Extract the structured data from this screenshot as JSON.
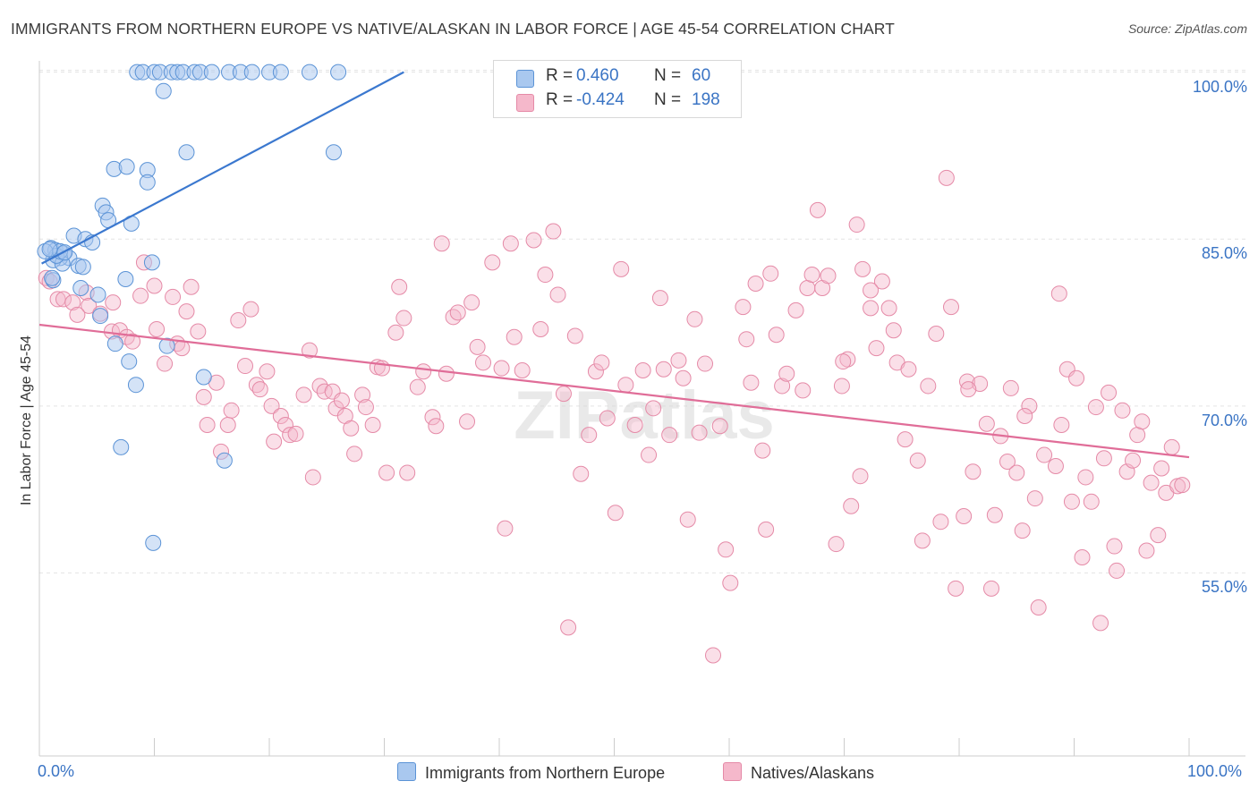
{
  "title": "IMMIGRANTS FROM NORTHERN EUROPE VS NATIVE/ALASKAN IN LABOR FORCE | AGE 45-54 CORRELATION CHART",
  "source": "Source: ZipAtlas.com",
  "watermark": "ZIPatlas",
  "colors": {
    "blue_fill": "#a9c8ef",
    "blue_stroke": "#5b93d6",
    "blue_line": "#3b78cf",
    "pink_fill": "#f5b8cb",
    "pink_stroke": "#e58aa7",
    "pink_line": "#e06d98",
    "axis_label": "#3a74c4",
    "grid": "#e3e3e3"
  },
  "legend": {
    "rows": [
      {
        "r_label": "R =",
        "r_value": "0.460",
        "n_label": "N =",
        "n_value": "60",
        "color": "#a9c8ef"
      },
      {
        "r_label": "R =",
        "r_value": "-0.424",
        "n_label": "N =",
        "n_value": "198",
        "color": "#f5b8cb"
      }
    ]
  },
  "bottom_legend": {
    "series1": "Immigrants from Northern Europe",
    "series2": "Natives/Alaskans"
  },
  "chart_data": {
    "type": "scatter",
    "title": "IMMIGRANTS FROM NORTHERN EUROPE VS NATIVE/ALASKAN IN LABOR FORCE | AGE 45-54 CORRELATION CHART",
    "xlabel": "",
    "ylabel": "In Labor Force | Age 45-54",
    "xlim": [
      0,
      100
    ],
    "ylim": [
      40,
      101.5
    ],
    "x_tick_labels": [
      "0.0%",
      "100.0%"
    ],
    "y_ticks": [
      55,
      70,
      85,
      100
    ],
    "y_tick_labels": [
      "55.0%",
      "70.0%",
      "85.0%",
      "100.0%"
    ],
    "grid": true,
    "legend_placement": "top-center",
    "series": [
      {
        "name": "Immigrants from Northern Europe",
        "R": 0.46,
        "N": 60,
        "trend": {
          "x": [
            0.2,
            31.7
          ],
          "y": [
            82.8,
            100.0
          ]
        },
        "points": [
          [
            8.5,
            100
          ],
          [
            9.0,
            100
          ],
          [
            10.0,
            100
          ],
          [
            10.5,
            100
          ],
          [
            11.5,
            100
          ],
          [
            12.0,
            100
          ],
          [
            12.5,
            100
          ],
          [
            13.5,
            100
          ],
          [
            14.0,
            100
          ],
          [
            15.0,
            100
          ],
          [
            16.5,
            100
          ],
          [
            17.5,
            100
          ],
          [
            18.5,
            100
          ],
          [
            20.0,
            100
          ],
          [
            21.0,
            100
          ],
          [
            23.5,
            100
          ],
          [
            26.0,
            100
          ],
          [
            10.8,
            98.3
          ],
          [
            25.6,
            92.8
          ],
          [
            12.8,
            92.8
          ],
          [
            6.5,
            91.3
          ],
          [
            7.6,
            91.5
          ],
          [
            9.4,
            91.2
          ],
          [
            9.4,
            90.1
          ],
          [
            5.5,
            88.0
          ],
          [
            5.8,
            87.4
          ],
          [
            6.0,
            86.7
          ],
          [
            8.0,
            86.4
          ],
          [
            3.0,
            85.3
          ],
          [
            4.0,
            85.0
          ],
          [
            4.6,
            84.7
          ],
          [
            1.0,
            84.2
          ],
          [
            1.4,
            84.0
          ],
          [
            2.1,
            83.7
          ],
          [
            2.6,
            83.3
          ],
          [
            1.8,
            83.3
          ],
          [
            1.2,
            83.1
          ],
          [
            2.0,
            82.8
          ],
          [
            3.4,
            82.6
          ],
          [
            3.8,
            82.5
          ],
          [
            9.8,
            82.9
          ],
          [
            7.5,
            81.4
          ],
          [
            1.2,
            81.3
          ],
          [
            3.6,
            80.6
          ],
          [
            5.1,
            80.0
          ],
          [
            5.3,
            78.1
          ],
          [
            6.6,
            75.6
          ],
          [
            11.1,
            75.4
          ],
          [
            7.8,
            74.0
          ],
          [
            14.3,
            72.6
          ],
          [
            8.4,
            71.9
          ],
          [
            7.1,
            66.3
          ],
          [
            16.1,
            65.1
          ],
          [
            9.9,
            57.7
          ],
          [
            1.5,
            83.5
          ],
          [
            1.8,
            83.9
          ],
          [
            0.5,
            83.9
          ],
          [
            2.2,
            83.8
          ],
          [
            0.9,
            84.1
          ],
          [
            1.1,
            81.5
          ]
        ]
      },
      {
        "name": "Natives/Alaskans",
        "R": -0.424,
        "N": 198,
        "trend": {
          "x": [
            0,
            100
          ],
          "y": [
            77.3,
            65.4
          ]
        },
        "points": [
          [
            0.6,
            81.5
          ],
          [
            0.9,
            81.2
          ],
          [
            1.6,
            79.6
          ],
          [
            2.1,
            79.6
          ],
          [
            2.9,
            79.3
          ],
          [
            4.1,
            80.2
          ],
          [
            4.3,
            79.0
          ],
          [
            3.3,
            78.2
          ],
          [
            5.3,
            78.3
          ],
          [
            6.3,
            76.7
          ],
          [
            7.0,
            76.8
          ],
          [
            6.4,
            79.3
          ],
          [
            7.6,
            76.2
          ],
          [
            8.1,
            75.8
          ],
          [
            8.8,
            79.9
          ],
          [
            9.1,
            82.9
          ],
          [
            10.0,
            80.8
          ],
          [
            10.2,
            76.9
          ],
          [
            10.9,
            73.8
          ],
          [
            11.6,
            79.8
          ],
          [
            12.0,
            75.6
          ],
          [
            12.4,
            75.2
          ],
          [
            12.8,
            78.5
          ],
          [
            13.2,
            80.7
          ],
          [
            13.8,
            76.7
          ],
          [
            14.3,
            70.8
          ],
          [
            14.6,
            68.3
          ],
          [
            15.4,
            72.1
          ],
          [
            15.8,
            65.9
          ],
          [
            16.4,
            68.3
          ],
          [
            16.7,
            69.6
          ],
          [
            17.3,
            77.7
          ],
          [
            17.9,
            73.6
          ],
          [
            18.4,
            78.7
          ],
          [
            18.9,
            71.9
          ],
          [
            19.2,
            71.5
          ],
          [
            19.8,
            73.1
          ],
          [
            20.2,
            70.0
          ],
          [
            20.4,
            66.8
          ],
          [
            21.0,
            69.1
          ],
          [
            21.4,
            68.3
          ],
          [
            21.8,
            67.4
          ],
          [
            22.3,
            67.5
          ],
          [
            23.0,
            71.0
          ],
          [
            23.5,
            75.0
          ],
          [
            23.8,
            63.6
          ],
          [
            24.4,
            71.8
          ],
          [
            24.8,
            71.3
          ],
          [
            25.5,
            71.3
          ],
          [
            25.8,
            69.8
          ],
          [
            26.3,
            70.5
          ],
          [
            26.6,
            69.1
          ],
          [
            27.1,
            68.0
          ],
          [
            27.4,
            65.7
          ],
          [
            28.1,
            71.0
          ],
          [
            28.4,
            69.9
          ],
          [
            29.0,
            68.3
          ],
          [
            29.4,
            73.5
          ],
          [
            29.8,
            73.4
          ],
          [
            30.2,
            64.0
          ],
          [
            31.0,
            76.6
          ],
          [
            31.3,
            80.7
          ],
          [
            31.7,
            77.9
          ],
          [
            32.0,
            64.0
          ],
          [
            32.9,
            71.7
          ],
          [
            33.4,
            73.1
          ],
          [
            34.2,
            69.0
          ],
          [
            34.5,
            68.2
          ],
          [
            35.0,
            84.6
          ],
          [
            35.4,
            72.9
          ],
          [
            36.0,
            78.0
          ],
          [
            36.4,
            78.4
          ],
          [
            37.2,
            68.6
          ],
          [
            37.6,
            79.3
          ],
          [
            38.1,
            75.3
          ],
          [
            38.6,
            73.9
          ],
          [
            39.4,
            82.9
          ],
          [
            40.2,
            73.4
          ],
          [
            40.5,
            59.0
          ],
          [
            41.0,
            84.6
          ],
          [
            41.3,
            76.2
          ],
          [
            42.0,
            73.2
          ],
          [
            43.0,
            84.9
          ],
          [
            43.6,
            76.9
          ],
          [
            44.0,
            81.8
          ],
          [
            44.7,
            85.7
          ],
          [
            45.1,
            80.0
          ],
          [
            45.6,
            71.1
          ],
          [
            46.0,
            50.1
          ],
          [
            46.6,
            76.3
          ],
          [
            47.1,
            63.9
          ],
          [
            47.8,
            67.4
          ],
          [
            48.4,
            73.1
          ],
          [
            48.9,
            73.9
          ],
          [
            49.4,
            68.9
          ],
          [
            50.1,
            60.4
          ],
          [
            50.6,
            82.3
          ],
          [
            51.0,
            71.9
          ],
          [
            51.8,
            68.3
          ],
          [
            52.5,
            73.2
          ],
          [
            53.0,
            65.6
          ],
          [
            53.4,
            69.8
          ],
          [
            54.0,
            79.7
          ],
          [
            54.3,
            73.3
          ],
          [
            54.8,
            67.4
          ],
          [
            55.6,
            74.1
          ],
          [
            56.0,
            72.5
          ],
          [
            56.4,
            59.8
          ],
          [
            57.0,
            77.8
          ],
          [
            57.4,
            67.6
          ],
          [
            57.9,
            73.8
          ],
          [
            58.6,
            47.6
          ],
          [
            59.2,
            68.2
          ],
          [
            59.7,
            57.1
          ],
          [
            60.1,
            54.1
          ],
          [
            61.2,
            78.9
          ],
          [
            61.5,
            76.0
          ],
          [
            61.9,
            72.1
          ],
          [
            62.3,
            81.0
          ],
          [
            62.9,
            66.0
          ],
          [
            63.2,
            58.9
          ],
          [
            63.6,
            81.9
          ],
          [
            64.1,
            76.4
          ],
          [
            64.6,
            71.8
          ],
          [
            65.0,
            72.9
          ],
          [
            65.8,
            78.6
          ],
          [
            66.4,
            71.4
          ],
          [
            66.8,
            80.6
          ],
          [
            67.2,
            81.8
          ],
          [
            67.7,
            87.6
          ],
          [
            68.1,
            80.6
          ],
          [
            68.6,
            81.7
          ],
          [
            69.3,
            57.6
          ],
          [
            69.8,
            71.8
          ],
          [
            70.3,
            74.2
          ],
          [
            70.6,
            61.0
          ],
          [
            71.1,
            86.3
          ],
          [
            71.6,
            82.3
          ],
          [
            72.3,
            78.8
          ],
          [
            72.8,
            75.2
          ],
          [
            73.3,
            81.2
          ],
          [
            73.9,
            78.8
          ],
          [
            74.3,
            76.8
          ],
          [
            74.6,
            73.9
          ],
          [
            75.3,
            67.0
          ],
          [
            75.6,
            73.3
          ],
          [
            76.4,
            65.1
          ],
          [
            76.8,
            57.9
          ],
          [
            77.3,
            71.8
          ],
          [
            78.0,
            76.5
          ],
          [
            78.4,
            59.6
          ],
          [
            78.9,
            90.5
          ],
          [
            79.3,
            78.9
          ],
          [
            79.7,
            53.6
          ],
          [
            80.4,
            60.1
          ],
          [
            80.7,
            72.2
          ],
          [
            81.2,
            64.1
          ],
          [
            81.8,
            72.0
          ],
          [
            82.4,
            68.4
          ],
          [
            82.8,
            53.6
          ],
          [
            83.1,
            60.2
          ],
          [
            83.6,
            67.3
          ],
          [
            84.2,
            65.0
          ],
          [
            84.5,
            71.6
          ],
          [
            85.0,
            64.0
          ],
          [
            85.5,
            58.8
          ],
          [
            86.1,
            70.0
          ],
          [
            86.6,
            61.7
          ],
          [
            86.9,
            51.9
          ],
          [
            87.4,
            65.6
          ],
          [
            88.4,
            64.6
          ],
          [
            88.9,
            68.3
          ],
          [
            89.4,
            73.3
          ],
          [
            89.8,
            61.4
          ],
          [
            90.2,
            72.5
          ],
          [
            90.7,
            56.4
          ],
          [
            91.0,
            63.6
          ],
          [
            91.5,
            61.4
          ],
          [
            91.9,
            69.9
          ],
          [
            92.3,
            50.5
          ],
          [
            92.6,
            65.3
          ],
          [
            93.0,
            71.2
          ],
          [
            93.5,
            57.4
          ],
          [
            93.7,
            55.2
          ],
          [
            94.2,
            69.6
          ],
          [
            94.6,
            64.1
          ],
          [
            95.1,
            65.1
          ],
          [
            95.5,
            67.4
          ],
          [
            95.9,
            68.6
          ],
          [
            96.3,
            57.0
          ],
          [
            96.7,
            63.1
          ],
          [
            97.3,
            58.4
          ],
          [
            97.6,
            64.4
          ],
          [
            98.0,
            62.2
          ],
          [
            98.5,
            66.3
          ],
          [
            99.0,
            62.8
          ],
          [
            99.4,
            62.9
          ],
          [
            72.3,
            80.4
          ],
          [
            69.9,
            74.0
          ],
          [
            80.8,
            71.5
          ],
          [
            88.7,
            80.1
          ],
          [
            85.7,
            69.1
          ],
          [
            71.4,
            63.7
          ]
        ]
      }
    ]
  },
  "ylabel": "In Labor Force | Age 45-54",
  "x_axis": {
    "min_label": "0.0%",
    "max_label": "100.0%"
  }
}
